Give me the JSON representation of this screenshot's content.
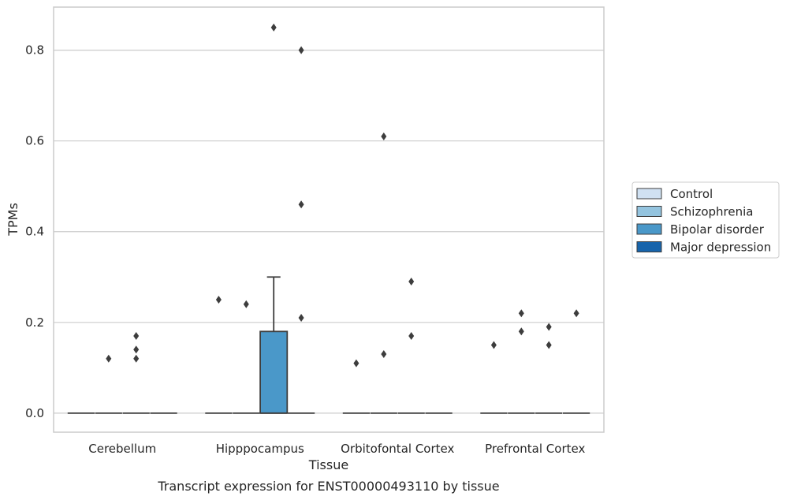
{
  "chart_data": {
    "type": "box",
    "caption": "Transcript expression for ENST00000493110 by tissue",
    "xlabel": "Tissue",
    "ylabel": "TPMs",
    "ylim": [
      -0.042,
      0.895
    ],
    "yticks": [
      0.0,
      0.2,
      0.4,
      0.6,
      0.8
    ],
    "ytick_labels": [
      "0.0",
      "0.2",
      "0.4",
      "0.6",
      "0.8"
    ],
    "grid": "horizontal",
    "legend_position": "right",
    "categories": [
      "Cerebellum",
      "Hipppocampus",
      "Orbitofontal Cortex",
      "Prefrontal Cortex"
    ],
    "series": [
      {
        "name": "Control",
        "color": "#d0e1f2"
      },
      {
        "name": "Schizophrenia",
        "color": "#94c4df"
      },
      {
        "name": "Bipolar disorder",
        "color": "#4a98c9"
      },
      {
        "name": "Major depression",
        "color": "#1764ab"
      }
    ],
    "boxes": [
      {
        "category": 0,
        "series": 0,
        "q1": 0,
        "median": 0,
        "q3": 0,
        "whisker_low": 0,
        "whisker_high": 0,
        "outliers": []
      },
      {
        "category": 0,
        "series": 1,
        "q1": 0,
        "median": 0,
        "q3": 0,
        "whisker_low": 0,
        "whisker_high": 0,
        "outliers": [
          0.12
        ]
      },
      {
        "category": 0,
        "series": 2,
        "q1": 0,
        "median": 0,
        "q3": 0,
        "whisker_low": 0,
        "whisker_high": 0,
        "outliers": [
          0.17,
          0.14,
          0.12
        ]
      },
      {
        "category": 0,
        "series": 3,
        "q1": 0,
        "median": 0,
        "q3": 0,
        "whisker_low": 0,
        "whisker_high": 0,
        "outliers": []
      },
      {
        "category": 1,
        "series": 0,
        "q1": 0,
        "median": 0,
        "q3": 0,
        "whisker_low": 0,
        "whisker_high": 0,
        "outliers": [
          0.25
        ]
      },
      {
        "category": 1,
        "series": 1,
        "q1": 0,
        "median": 0,
        "q3": 0,
        "whisker_low": 0,
        "whisker_high": 0,
        "outliers": [
          0.24
        ]
      },
      {
        "category": 1,
        "series": 2,
        "q1": 0,
        "median": 0,
        "q3": 0.18,
        "whisker_low": 0,
        "whisker_high": 0.3,
        "outliers": [
          0.85
        ]
      },
      {
        "category": 1,
        "series": 3,
        "q1": 0,
        "median": 0,
        "q3": 0,
        "whisker_low": 0,
        "whisker_high": 0,
        "outliers": [
          0.8,
          0.46,
          0.21
        ]
      },
      {
        "category": 2,
        "series": 0,
        "q1": 0,
        "median": 0,
        "q3": 0,
        "whisker_low": 0,
        "whisker_high": 0,
        "outliers": [
          0.11
        ]
      },
      {
        "category": 2,
        "series": 1,
        "q1": 0,
        "median": 0,
        "q3": 0,
        "whisker_low": 0,
        "whisker_high": 0,
        "outliers": [
          0.61,
          0.13
        ]
      },
      {
        "category": 2,
        "series": 2,
        "q1": 0,
        "median": 0,
        "q3": 0,
        "whisker_low": 0,
        "whisker_high": 0,
        "outliers": [
          0.29,
          0.17
        ]
      },
      {
        "category": 2,
        "series": 3,
        "q1": 0,
        "median": 0,
        "q3": 0,
        "whisker_low": 0,
        "whisker_high": 0,
        "outliers": []
      },
      {
        "category": 3,
        "series": 0,
        "q1": 0,
        "median": 0,
        "q3": 0,
        "whisker_low": 0,
        "whisker_high": 0,
        "outliers": [
          0.15
        ]
      },
      {
        "category": 3,
        "series": 1,
        "q1": 0,
        "median": 0,
        "q3": 0,
        "whisker_low": 0,
        "whisker_high": 0,
        "outliers": [
          0.22,
          0.18
        ]
      },
      {
        "category": 3,
        "series": 2,
        "q1": 0,
        "median": 0,
        "q3": 0,
        "whisker_low": 0,
        "whisker_high": 0,
        "outliers": [
          0.19,
          0.15
        ]
      },
      {
        "category": 3,
        "series": 3,
        "q1": 0,
        "median": 0,
        "q3": 0,
        "whisker_low": 0,
        "whisker_high": 0,
        "outliers": [
          0.22
        ]
      }
    ],
    "colors": {
      "box_edge": "#3d3d3d",
      "grid": "#cccccc",
      "frame": "#cccccc",
      "text": "#262626"
    }
  }
}
